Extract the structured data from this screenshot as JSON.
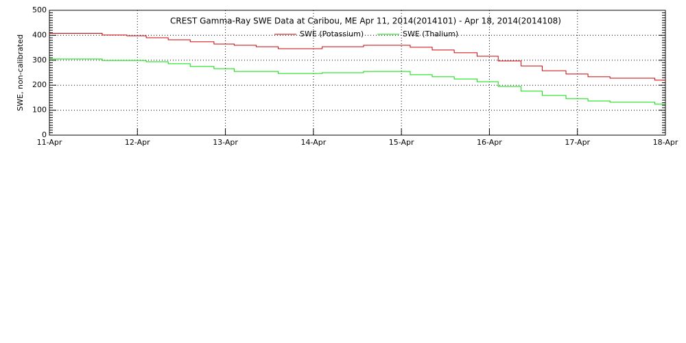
{
  "chart_data": {
    "type": "step",
    "title": "CREST Gamma-Ray SWE Data at Caribou, ME   Apr 11, 2014(2014101) - Apr 18, 2014(2014108)",
    "y_label": "SWE, non-calibrated",
    "x": [
      0,
      0.6,
      0.88,
      1.1,
      1.35,
      1.6,
      1.87,
      2.1,
      2.35,
      2.6,
      3.1,
      3.57,
      4.1,
      4.35,
      4.6,
      4.86,
      5.1,
      5.36,
      5.6,
      5.87,
      6.12,
      6.37,
      6.88,
      7
    ],
    "series": [
      {
        "name": "SWE (Potassium)",
        "color": "#cc0000",
        "values": [
          408,
          401,
          398,
          390,
          382,
          374,
          365,
          360,
          354,
          346,
          354,
          360,
          352,
          341,
          330,
          316,
          297,
          277,
          258,
          245,
          234,
          228,
          220,
          220
        ]
      },
      {
        "name": "SWE (Thalium)",
        "color": "#00dd00",
        "values": [
          305,
          299,
          299,
          294,
          286,
          275,
          266,
          255,
          255,
          247,
          250,
          255,
          242,
          234,
          225,
          214,
          195,
          176,
          159,
          146,
          137,
          132,
          124,
          124
        ]
      }
    ],
    "xlim": [
      0,
      7
    ],
    "xticks": [
      {
        "value": 0,
        "label": "11-Apr"
      },
      {
        "value": 1,
        "label": "12-Apr"
      },
      {
        "value": 2,
        "label": "13-Apr"
      },
      {
        "value": 3,
        "label": "14-Apr"
      },
      {
        "value": 4,
        "label": "15-Apr"
      },
      {
        "value": 5,
        "label": "16-Apr"
      },
      {
        "value": 6,
        "label": "17-Apr"
      },
      {
        "value": 7,
        "label": "18-Apr"
      }
    ],
    "ylim": [
      0,
      500
    ],
    "yticks": [
      0,
      100,
      200,
      300,
      400,
      500
    ],
    "grid": true
  }
}
